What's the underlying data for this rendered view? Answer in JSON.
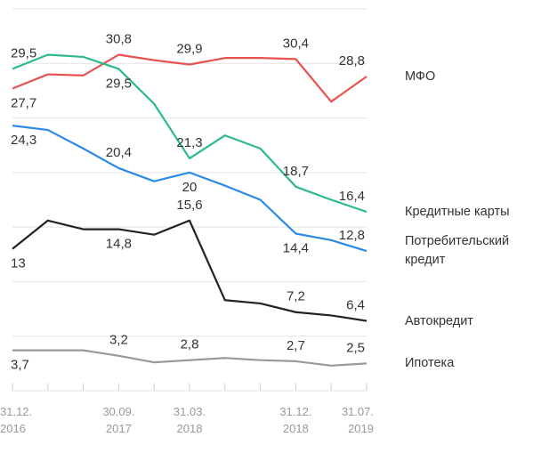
{
  "chart_data": {
    "type": "line",
    "categories": [
      "31.12.\n2016",
      null,
      null,
      "30.09.\n2017",
      null,
      "31.03.\n2018",
      null,
      null,
      "31.12.\n2018",
      null,
      "31.07.\n2019"
    ],
    "ylim": [
      0,
      35
    ],
    "yticks": [
      0,
      5,
      10,
      15,
      20,
      25,
      30,
      35
    ],
    "grid": true,
    "series": [
      {
        "name": "МФО",
        "color": "#e8534f",
        "values": [
          27.7,
          29.0,
          28.9,
          30.8,
          30.3,
          29.9,
          30.5,
          30.5,
          30.4,
          26.5,
          28.8
        ],
        "value_labels": [
          "27,7",
          null,
          null,
          "30,8",
          null,
          "29,9",
          null,
          null,
          "30,4",
          null,
          "28,8"
        ]
      },
      {
        "name": "Кредитные карты",
        "color": "#2dbb85",
        "values": [
          29.5,
          30.8,
          30.6,
          29.5,
          26.3,
          21.3,
          23.4,
          22.2,
          18.7,
          17.5,
          16.4
        ],
        "value_labels": [
          "29,5",
          null,
          null,
          "29,5",
          null,
          "21,3",
          null,
          null,
          "18,7",
          null,
          "16,4"
        ]
      },
      {
        "name": "Потребительский кредит",
        "color": "#2a8ae6",
        "values": [
          24.3,
          23.9,
          22.2,
          20.4,
          19.2,
          20,
          18.8,
          17.5,
          14.4,
          13.8,
          12.8
        ],
        "value_labels": [
          "24,3",
          null,
          null,
          "20,4",
          null,
          "20",
          null,
          null,
          "14,4",
          null,
          "12,8"
        ]
      },
      {
        "name": "Автокредит",
        "color": "#222222",
        "values": [
          13,
          15.6,
          14.8,
          14.8,
          14.3,
          15.6,
          8.3,
          8.0,
          7.2,
          6.9,
          6.4
        ],
        "value_labels": [
          "13",
          null,
          null,
          "14,8",
          null,
          "15,6",
          null,
          null,
          "7,2",
          null,
          "6,4"
        ]
      },
      {
        "name": "Ипотека",
        "color": "#999999",
        "values": [
          3.7,
          3.7,
          3.7,
          3.2,
          2.6,
          2.8,
          3.0,
          2.8,
          2.7,
          2.3,
          2.5
        ],
        "value_labels": [
          "3,7",
          null,
          null,
          "3,2",
          null,
          "2,8",
          null,
          null,
          "2,7",
          null,
          "2,5"
        ]
      }
    ]
  }
}
